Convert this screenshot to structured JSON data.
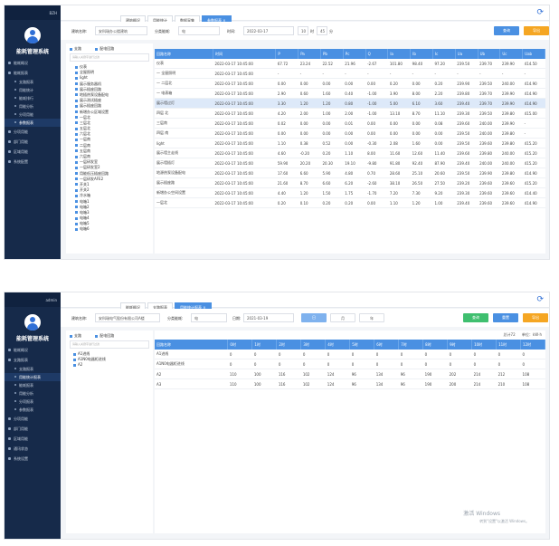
{
  "panel1": {
    "user": "BZH",
    "sysname": "能耗管理系统",
    "menu": [
      {
        "label": "能耗概况",
        "sub": false,
        "active": false
      },
      {
        "label": "能耗报表",
        "sub": false,
        "active": false
      },
      {
        "label": "支路报表",
        "sub": true,
        "active": false
      },
      {
        "label": "用能统计",
        "sub": true,
        "active": false
      },
      {
        "label": "能耗排行",
        "sub": true,
        "active": false
      },
      {
        "label": "用能分析",
        "sub": true,
        "active": false
      },
      {
        "label": "分项用能",
        "sub": true,
        "active": false
      },
      {
        "label": "参数报表",
        "sub": true,
        "active": true
      },
      {
        "label": "分项用能",
        "sub": false,
        "active": false
      },
      {
        "label": "部门用能",
        "sub": false,
        "active": false
      },
      {
        "label": "区域用能",
        "sub": false,
        "active": false
      },
      {
        "label": "系统配置",
        "sub": false,
        "active": false
      }
    ],
    "tabs": [
      {
        "label": "建筑概况",
        "active": false
      },
      {
        "label": "用能统计",
        "active": false
      },
      {
        "label": "数据采集",
        "active": false
      },
      {
        "label": "参数报表 ×",
        "active": true
      }
    ],
    "filters": {
      "building_label": "建筑名称:",
      "building": "安科瑞办公楼建筑",
      "type_label": "分类能耗:",
      "type": "电",
      "time_label": "时间:",
      "date": "2022-03-17",
      "hour": "10",
      "minute": "45",
      "hour_unit": "时",
      "minute_unit": "分",
      "query": "查询",
      "export": "导出"
    },
    "tree": {
      "cat1": "支路",
      "cat2": "配电回路",
      "search": "请输入关键字进行过滤",
      "nodes": [
        "仪表",
        "全屋照明",
        "light",
        "展示服务器机",
        "展示插座回路",
        "地插热泵设备配电",
        "展示测试插座",
        "展示插座回路",
        "新增办公区域设置",
        "一层北",
        "三层北",
        "五层北",
        "六层北",
        "一层南",
        "二层南",
        "五层南",
        "六层南",
        "一层研发室",
        "一层研发室2",
        "用能低压插座回路",
        "一层研发AFE2",
        "开关1",
        "开关2",
        "冷水箱",
        "电箱1",
        "电箱2",
        "电箱3",
        "电箱4",
        "电箱5",
        "电箱6"
      ]
    },
    "columns": [
      "回路名称",
      "时间",
      "P",
      "Pa",
      "Pb",
      "Pc",
      "Q",
      "Ia",
      "Ib",
      "Ic",
      "Ua",
      "Ub",
      "Uc",
      "Uab"
    ],
    "rows": [
      [
        "仪表",
        "2022-03-17 10:45:00",
        "67.72",
        "23.24",
        "22.52",
        "21.96",
        "-2.67",
        "101.80",
        "98.40",
        "97.20",
        "239.50",
        "239.70",
        "239.90",
        "414.50"
      ],
      [
        "一 全屋照明",
        "2022-03-17 10:45:00",
        "-",
        "-",
        "-",
        "-",
        "-",
        "-",
        "-",
        "-",
        "-",
        "-",
        "-",
        "-"
      ],
      [
        "一 二层北",
        "2022-03-17 10:45:00",
        "0.00",
        "0.00",
        "0.00",
        "0.00",
        "0.00",
        "0.20",
        "0.00",
        "0.20",
        "239.90",
        "239.50",
        "240.00",
        "414.90"
      ],
      [
        "一 电表箱",
        "2022-03-17 10:45:00",
        "2.90",
        "0.60",
        "1.60",
        "0.40",
        "-1.00",
        "3.90",
        "8.00",
        "2.20",
        "239.80",
        "239.70",
        "239.90",
        "414.90"
      ],
      [
        "展示墙过灯",
        "2022-03-17 10:45:00",
        "3.30",
        "1.20",
        "1.20",
        "0.80",
        "-1.00",
        "5.00",
        "6.10",
        "3.60",
        "239.40",
        "239.70",
        "239.90",
        "414.90"
      ],
      [
        "四层 北",
        "2022-03-17 10:45:00",
        "4.20",
        "2.00",
        "1.00",
        "2.00",
        "-1.00",
        "13.10",
        "8.70",
        "11.10",
        "239.30",
        "239.50",
        "239.80",
        "415.00"
      ],
      [
        "三层南",
        "2022-03-17 10:45:00",
        "0.02",
        "0.00",
        "0.00",
        "0.01",
        "0.00",
        "0.00",
        "0.00",
        "0.08",
        "239.60",
        "240.00",
        "239.90",
        "-"
      ],
      [
        "四层 南",
        "2022-03-17 10:45:00",
        "0.00",
        "0.00",
        "0.00",
        "0.00",
        "0.00",
        "0.00",
        "0.00",
        "0.00",
        "239.50",
        "240.00",
        "239.80",
        "-"
      ],
      [
        "light",
        "2022-03-17 10:45:00",
        "1.10",
        "0.38",
        "0.52",
        "0.00",
        "-0.30",
        "2.08",
        "1.60",
        "0.00",
        "239.50",
        "239.60",
        "239.80",
        "415.20"
      ],
      [
        "展示墙主走线",
        "2022-03-17 10:45:00",
        "4.60",
        "-0.20",
        "0.20",
        "1.10",
        "8.00",
        "11.60",
        "12.60",
        "11.40",
        "239.60",
        "239.80",
        "240.00",
        "415.20"
      ],
      [
        "展示墙插灯",
        "2022-03-17 10:45:00",
        "59.90",
        "20.20",
        "20.30",
        "19.10",
        "-9.80",
        "91.80",
        "92.40",
        "87.90",
        "239.40",
        "240.00",
        "240.00",
        "415.20"
      ],
      [
        "地源热泵设备配电",
        "2022-03-17 10:45:00",
        "17.60",
        "6.60",
        "5.90",
        "4.80",
        "0.70",
        "28.60",
        "25.10",
        "20.60",
        "239.50",
        "239.90",
        "239.80",
        "414.90"
      ],
      [
        "展示插座路",
        "2022-03-17 10:45:00",
        "21.60",
        "8.70",
        "6.60",
        "6.20",
        "-2.60",
        "38.10",
        "26.50",
        "27.50",
        "239.20",
        "239.60",
        "239.60",
        "415.20"
      ],
      [
        "新增办公空间设置",
        "2022-03-17 10:45:00",
        "4.40",
        "1.20",
        "1.50",
        "1.75",
        "-1.70",
        "7.20",
        "7.30",
        "9.20",
        "239.30",
        "239.60",
        "239.60",
        "414.40"
      ],
      [
        "一层北",
        "2022-03-17 10:45:00",
        "0.20",
        "0.10",
        "0.20",
        "0.20",
        "0.00",
        "1.10",
        "1.20",
        "1.00",
        "239.40",
        "239.60",
        "239.60",
        "414.90"
      ]
    ]
  },
  "panel2": {
    "user": "admin",
    "sysname": "能耗管理系统",
    "menu": [
      {
        "label": "能耗概况",
        "sub": false,
        "active": false
      },
      {
        "label": "支路报表",
        "sub": false,
        "active": false
      },
      {
        "label": "支路报表",
        "sub": true,
        "active": false
      },
      {
        "label": "用能统计报表",
        "sub": true,
        "active": true
      },
      {
        "label": "能耗报表",
        "sub": true,
        "active": false
      },
      {
        "label": "用能分析",
        "sub": true,
        "active": false
      },
      {
        "label": "分项报表",
        "sub": true,
        "active": false
      },
      {
        "label": "参数报表",
        "sub": true,
        "active": false
      },
      {
        "label": "分项用能",
        "sub": false,
        "active": false
      },
      {
        "label": "部门用能",
        "sub": false,
        "active": false
      },
      {
        "label": "区域用能",
        "sub": false,
        "active": false
      },
      {
        "label": "通讯状态",
        "sub": false,
        "active": false
      },
      {
        "label": "系统设置",
        "sub": false,
        "active": false
      }
    ],
    "tabs": [
      {
        "label": "能耗概况",
        "active": false
      },
      {
        "label": "支路报表",
        "active": false
      },
      {
        "label": "用能统计报表 ×",
        "active": true
      }
    ],
    "filters": {
      "building_label": "建筑名称:",
      "building": "安科瑞电气股份有限公司A楼",
      "type_label": "分类能耗:",
      "type": "电",
      "date_label": "日期:",
      "date": "2021-03-19",
      "day": "日",
      "month": "月",
      "year": "年",
      "query": "查询",
      "reset": "重置",
      "export": "导出"
    },
    "tree": {
      "cat1": "支路",
      "cat2": "配电回路",
      "search": "请输入关键字进行过滤",
      "nodes": [
        "A1进线",
        "A1N0电器柜进线",
        "A2"
      ]
    },
    "meta": {
      "total": "总计72",
      "unit": "单位：kW·h"
    },
    "columns": [
      "回路名称",
      "0时",
      "1时",
      "2时",
      "3时",
      "4时",
      "5时",
      "6时",
      "7时",
      "8时",
      "9时",
      "10时",
      "11时",
      "12时"
    ],
    "rows": [
      [
        "A1进线",
        "0",
        "0",
        "0",
        "0",
        "0",
        "0",
        "0",
        "0",
        "0",
        "0",
        "0",
        "0",
        "0"
      ],
      [
        "A1N0电器柜进线",
        "0",
        "0",
        "0",
        "0",
        "0",
        "0",
        "0",
        "0",
        "0",
        "0",
        "0",
        "0",
        "0"
      ],
      [
        "A2",
        "110",
        "100",
        "116",
        "102",
        "124",
        "96",
        "134",
        "96",
        "190",
        "202",
        "214",
        "212",
        "108"
      ],
      [
        "A3",
        "110",
        "100",
        "116",
        "102",
        "124",
        "96",
        "134",
        "96",
        "190",
        "200",
        "214",
        "210",
        "108"
      ]
    ],
    "watermark": "激活 Windows",
    "watermark_sub": "转到\"设置\"以激活 Windows。"
  }
}
